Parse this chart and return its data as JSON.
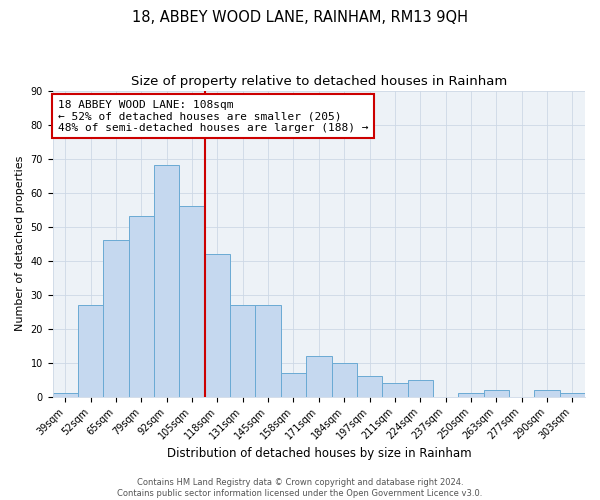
{
  "title": "18, ABBEY WOOD LANE, RAINHAM, RM13 9QH",
  "subtitle": "Size of property relative to detached houses in Rainham",
  "xlabel": "Distribution of detached houses by size in Rainham",
  "ylabel": "Number of detached properties",
  "categories": [
    "39sqm",
    "52sqm",
    "65sqm",
    "79sqm",
    "92sqm",
    "105sqm",
    "118sqm",
    "131sqm",
    "145sqm",
    "158sqm",
    "171sqm",
    "184sqm",
    "197sqm",
    "211sqm",
    "224sqm",
    "237sqm",
    "250sqm",
    "263sqm",
    "277sqm",
    "290sqm",
    "303sqm"
  ],
  "values": [
    1,
    27,
    46,
    53,
    68,
    56,
    42,
    27,
    27,
    7,
    12,
    10,
    6,
    4,
    5,
    0,
    1,
    2,
    0,
    2,
    1
  ],
  "bar_color": "#c5d8ef",
  "bar_edge_color": "#6aaad4",
  "vline_color": "#cc0000",
  "vline_x": 5.5,
  "annotation_lines": [
    "18 ABBEY WOOD LANE: 108sqm",
    "← 52% of detached houses are smaller (205)",
    "48% of semi-detached houses are larger (188) →"
  ],
  "annotation_box_color": "#cc0000",
  "ylim": [
    0,
    90
  ],
  "yticks": [
    0,
    10,
    20,
    30,
    40,
    50,
    60,
    70,
    80,
    90
  ],
  "grid_color": "#cdd8e6",
  "bg_color": "#edf2f7",
  "footer_lines": [
    "Contains HM Land Registry data © Crown copyright and database right 2024.",
    "Contains public sector information licensed under the Open Government Licence v3.0."
  ],
  "title_fontsize": 10.5,
  "subtitle_fontsize": 9.5,
  "xlabel_fontsize": 8.5,
  "ylabel_fontsize": 8,
  "tick_fontsize": 7,
  "annotation_fontsize": 8,
  "footer_fontsize": 6
}
